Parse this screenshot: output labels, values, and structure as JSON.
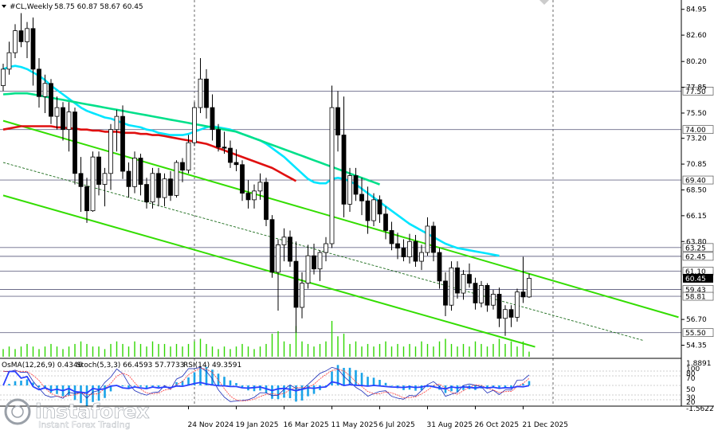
{
  "header": {
    "symbol": "#CL,Weekly",
    "ohlc": "58.75 60.87 58.67 60.45"
  },
  "oscillator_header": {
    "osma": "OsMA(12,26,9) 0.4346",
    "stoch": "Stoch(5,3,3) 66.4593 57.7733",
    "rsi": "RSI(14) 49.3591"
  },
  "watermark": {
    "brand": "instaforex",
    "tagline": "Instant Forex Trading"
  },
  "colors": {
    "bull_candle": "#ffffff",
    "bear_candle": "#000000",
    "ma_short": "#00e5ff",
    "ma_mid": "#00e08a",
    "ma_long": "#e01010",
    "channel": "#33dd00",
    "midline": "#1a6b1a",
    "level_line": "#6b6b8a",
    "current_price_bg": "#000000",
    "volume": "#2fd600",
    "osma": "#1aa3e8",
    "stoch_main": "#1a2bb8",
    "stoch_signal": "#ff3a3a",
    "rsi": "#2a3fff"
  },
  "chart_data": {
    "type": "candlestick",
    "timeframe": "Weekly",
    "y_range": [
      53.3,
      85.8
    ],
    "y_ticks": [
      84.95,
      82.6,
      80.2,
      77.85,
      75.5,
      73.2,
      70.85,
      68.5,
      66.15,
      63.8,
      56.7,
      54.35
    ],
    "date_ticks": [
      {
        "label": "24 Nov 2024",
        "i": 31
      },
      {
        "label": "19 Jan 2025",
        "i": 39
      },
      {
        "label": "16 Mar 2025",
        "i": 47
      },
      {
        "label": "11 May 2025",
        "i": 55
      },
      {
        "label": "6 Jul 2025",
        "i": 63
      },
      {
        "label": "31 Aug 2025",
        "i": 71
      },
      {
        "label": "26 Oct 2025",
        "i": 79
      },
      {
        "label": "21 Dec 2025",
        "i": 87
      }
    ],
    "levels": [
      {
        "value": 77.5,
        "label": "77.50"
      },
      {
        "value": 74.0,
        "label": "74.00"
      },
      {
        "value": 69.4,
        "label": "69.40"
      },
      {
        "value": 63.25,
        "label": "63.25"
      },
      {
        "value": 62.45,
        "label": "62.45"
      },
      {
        "value": 61.1,
        "label": "61.10"
      },
      {
        "value": 59.43,
        "label": "59.43"
      },
      {
        "value": 58.81,
        "label": "58.81"
      },
      {
        "value": 55.5,
        "label": "55.50"
      }
    ],
    "current_price": {
      "value": 60.45,
      "label": "60.45"
    },
    "vertical_markers": [
      32,
      92
    ],
    "candles": [
      [
        78.0,
        80.0,
        77.5,
        79.5
      ],
      [
        79.5,
        82.0,
        79.0,
        81.0
      ],
      [
        81.0,
        83.6,
        80.5,
        83.0
      ],
      [
        83.0,
        84.6,
        81.5,
        82.0
      ],
      [
        82.0,
        83.8,
        80.5,
        83.2
      ],
      [
        83.2,
        84.2,
        78.0,
        79.5
      ],
      [
        79.5,
        80.5,
        76.0,
        77.0
      ],
      [
        77.0,
        79.0,
        75.5,
        78.2
      ],
      [
        78.2,
        78.6,
        74.5,
        75.2
      ],
      [
        75.2,
        77.0,
        74.0,
        76.0
      ],
      [
        76.0,
        76.5,
        73.0,
        74.0
      ],
      [
        74.0,
        76.5,
        72.0,
        75.6
      ],
      [
        75.6,
        76.0,
        69.0,
        70.0
      ],
      [
        70.0,
        71.5,
        66.5,
        68.8
      ],
      [
        68.8,
        69.6,
        65.5,
        66.6
      ],
      [
        66.6,
        72.0,
        66.5,
        71.5
      ],
      [
        71.5,
        72.0,
        68.0,
        69.0
      ],
      [
        69.0,
        70.5,
        67.0,
        70.0
      ],
      [
        70.0,
        74.5,
        68.5,
        74.0
      ],
      [
        74.0,
        75.8,
        72.0,
        75.2
      ],
      [
        75.2,
        76.2,
        69.5,
        70.2
      ],
      [
        70.2,
        71.0,
        67.8,
        68.8
      ],
      [
        68.8,
        72.0,
        68.2,
        71.4
      ],
      [
        71.4,
        71.8,
        68.0,
        69.0
      ],
      [
        69.0,
        69.6,
        66.8,
        67.4
      ],
      [
        67.4,
        70.5,
        66.8,
        70.0
      ],
      [
        70.0,
        70.5,
        67.0,
        67.8
      ],
      [
        67.8,
        70.0,
        67.0,
        69.5
      ],
      [
        69.5,
        70.2,
        67.5,
        68.0
      ],
      [
        68.0,
        71.2,
        67.8,
        71.0
      ],
      [
        71.0,
        71.4,
        69.2,
        70.3
      ],
      [
        70.3,
        73.5,
        70.0,
        72.8
      ],
      [
        72.8,
        76.5,
        72.5,
        76.0
      ],
      [
        76.0,
        80.5,
        75.5,
        78.6
      ],
      [
        78.6,
        79.5,
        75.0,
        76.0
      ],
      [
        76.0,
        77.2,
        73.0,
        74.0
      ],
      [
        74.0,
        74.5,
        72.0,
        72.4
      ],
      [
        72.4,
        73.8,
        71.8,
        72.3
      ],
      [
        72.3,
        73.0,
        70.5,
        71.0
      ],
      [
        71.0,
        72.2,
        70.2,
        70.8
      ],
      [
        70.8,
        71.2,
        67.5,
        68.2
      ],
      [
        68.2,
        69.4,
        66.8,
        67.6
      ],
      [
        67.6,
        69.0,
        66.8,
        68.4
      ],
      [
        68.4,
        70.0,
        67.6,
        69.2
      ],
      [
        69.2,
        69.6,
        65.2,
        65.8
      ],
      [
        65.8,
        66.2,
        60.5,
        61.0
      ],
      [
        61.0,
        64.0,
        57.5,
        63.5
      ],
      [
        63.5,
        65.0,
        62.0,
        64.2
      ],
      [
        64.2,
        64.8,
        61.5,
        62.0
      ],
      [
        62.0,
        63.8,
        55.5,
        57.8
      ],
      [
        57.8,
        61.0,
        56.8,
        60.0
      ],
      [
        60.0,
        63.5,
        59.5,
        62.5
      ],
      [
        62.5,
        63.6,
        60.8,
        61.3
      ],
      [
        61.3,
        63.0,
        60.2,
        62.8
      ],
      [
        62.8,
        64.2,
        62.0,
        63.6
      ],
      [
        63.6,
        78.0,
        63.2,
        76.0
      ],
      [
        76.0,
        77.5,
        72.0,
        73.5
      ],
      [
        73.5,
        77.0,
        66.0,
        67.2
      ],
      [
        67.2,
        70.5,
        66.5,
        69.8
      ],
      [
        69.8,
        70.5,
        67.5,
        68.1
      ],
      [
        68.1,
        69.6,
        66.2,
        67.5
      ],
      [
        67.5,
        68.8,
        64.5,
        65.7
      ],
      [
        65.7,
        68.2,
        65.2,
        67.6
      ],
      [
        67.6,
        68.0,
        65.5,
        66.3
      ],
      [
        66.3,
        67.0,
        64.0,
        64.8
      ],
      [
        64.8,
        65.6,
        63.0,
        63.6
      ],
      [
        63.6,
        64.6,
        62.2,
        63.2
      ],
      [
        63.2,
        64.0,
        62.0,
        62.4
      ],
      [
        62.4,
        64.5,
        61.8,
        63.8
      ],
      [
        63.8,
        64.4,
        61.5,
        62.0
      ],
      [
        62.0,
        63.5,
        61.2,
        62.8
      ],
      [
        62.8,
        66.0,
        62.5,
        65.2
      ],
      [
        65.2,
        65.6,
        62.0,
        62.8
      ],
      [
        62.8,
        63.2,
        59.5,
        60.2
      ],
      [
        60.2,
        61.0,
        57.0,
        58.0
      ],
      [
        58.0,
        62.0,
        57.5,
        61.4
      ],
      [
        61.4,
        62.0,
        58.6,
        59.1
      ],
      [
        59.1,
        61.2,
        58.5,
        60.8
      ],
      [
        60.8,
        61.8,
        59.6,
        60.0
      ],
      [
        60.0,
        60.5,
        57.6,
        58.2
      ],
      [
        58.2,
        60.2,
        57.8,
        59.8
      ],
      [
        59.8,
        60.0,
        57.4,
        58.0
      ],
      [
        58.0,
        59.4,
        57.6,
        59.0
      ],
      [
        59.0,
        59.6,
        56.0,
        56.8
      ],
      [
        56.8,
        58.0,
        55.2,
        57.6
      ],
      [
        57.6,
        58.0,
        56.0,
        56.9
      ],
      [
        56.9,
        59.5,
        56.5,
        59.2
      ],
      [
        59.2,
        62.4,
        58.2,
        58.75
      ],
      [
        58.75,
        60.87,
        58.67,
        60.45
      ]
    ],
    "volumes": [
      3,
      4,
      3,
      4,
      5,
      4,
      3,
      4,
      5,
      4,
      3,
      4,
      5,
      6,
      5,
      4,
      4,
      3,
      5,
      6,
      5,
      4,
      6,
      5,
      4,
      6,
      5,
      5,
      4,
      5,
      4,
      5,
      6,
      7,
      5,
      4,
      3,
      4,
      3,
      4,
      5,
      4,
      3,
      4,
      5,
      9,
      10,
      6,
      5,
      12,
      6,
      5,
      4,
      5,
      6,
      14,
      8,
      9,
      5,
      6,
      4,
      5,
      4,
      5,
      6,
      4,
      5,
      4,
      5,
      4,
      6,
      5,
      4,
      6,
      7,
      5,
      4,
      5,
      4,
      6,
      5,
      4,
      5,
      7,
      5,
      6,
      4,
      6,
      2
    ],
    "ma_short_values": [
      79.5,
      79.7,
      79.8,
      79.7,
      79.5,
      79.2,
      78.9,
      78.5,
      78.0,
      77.6,
      77.2,
      76.8,
      76.4,
      76.0,
      75.7,
      75.5,
      75.3,
      75.1,
      75.0,
      74.8,
      74.6,
      74.4,
      74.3,
      74.2,
      74.0,
      73.9,
      73.7,
      73.6,
      73.5,
      73.5,
      73.5,
      73.6,
      73.8,
      74.0,
      74.2,
      74.3,
      74.2,
      74.1,
      74.0,
      73.8,
      73.6,
      73.4,
      73.2,
      73.0,
      72.7,
      72.3,
      71.9,
      71.5,
      71.0,
      70.5,
      70.0,
      69.5,
      69.2,
      69.1,
      69.1,
      69.5,
      69.6,
      69.5,
      69.3,
      69.0,
      68.6,
      68.2,
      67.8,
      67.4,
      67.0,
      66.6,
      66.2,
      65.8,
      65.4,
      65.1,
      64.8,
      64.5,
      64.2,
      63.9,
      63.6,
      63.4,
      63.2,
      63.1,
      63.0,
      62.9,
      62.8,
      62.7,
      62.6,
      62.5
    ],
    "ma_mid_values": [
      77.2,
      77.25,
      77.3,
      77.3,
      77.3,
      77.2,
      77.1,
      77.0,
      76.9,
      76.8,
      76.7,
      76.6,
      76.5,
      76.4,
      76.3,
      76.2,
      76.1,
      76.0,
      75.9,
      75.8,
      75.7,
      75.6,
      75.5,
      75.4,
      75.3,
      75.2,
      75.1,
      75.0,
      74.9,
      74.8,
      74.7,
      74.6,
      74.5,
      74.4,
      74.3,
      74.2,
      74.1,
      74.0,
      73.9,
      73.8,
      73.6,
      73.4,
      73.2,
      73.0,
      72.8,
      72.6,
      72.4,
      72.2,
      72.0,
      71.8,
      71.6,
      71.4,
      71.2,
      71.0,
      70.8,
      70.6,
      70.4,
      70.2,
      70.0,
      69.8,
      69.6,
      69.4,
      69.2,
      69.0
    ],
    "ma_long_values": [
      74.0,
      74.1,
      74.2,
      74.3,
      74.3,
      74.3,
      74.3,
      74.3,
      74.3,
      74.2,
      74.2,
      74.1,
      74.1,
      74.0,
      74.0,
      73.9,
      73.9,
      73.8,
      73.8,
      73.8,
      73.7,
      73.7,
      73.7,
      73.6,
      73.6,
      73.5,
      73.5,
      73.4,
      73.3,
      73.2,
      73.1,
      73.0,
      72.9,
      72.8,
      72.7,
      72.5,
      72.3,
      72.1,
      71.9,
      71.7,
      71.5,
      71.3,
      71.1,
      70.9,
      70.7,
      70.5,
      70.2,
      69.9,
      69.6,
      69.3
    ],
    "osc_ranges": {
      "osma_max": 1.8891,
      "osma_min": -1.5622,
      "ticks": [
        "1.8891",
        "100",
        "80",
        "70",
        "50",
        "30",
        "20",
        "-1.5622"
      ]
    }
  }
}
